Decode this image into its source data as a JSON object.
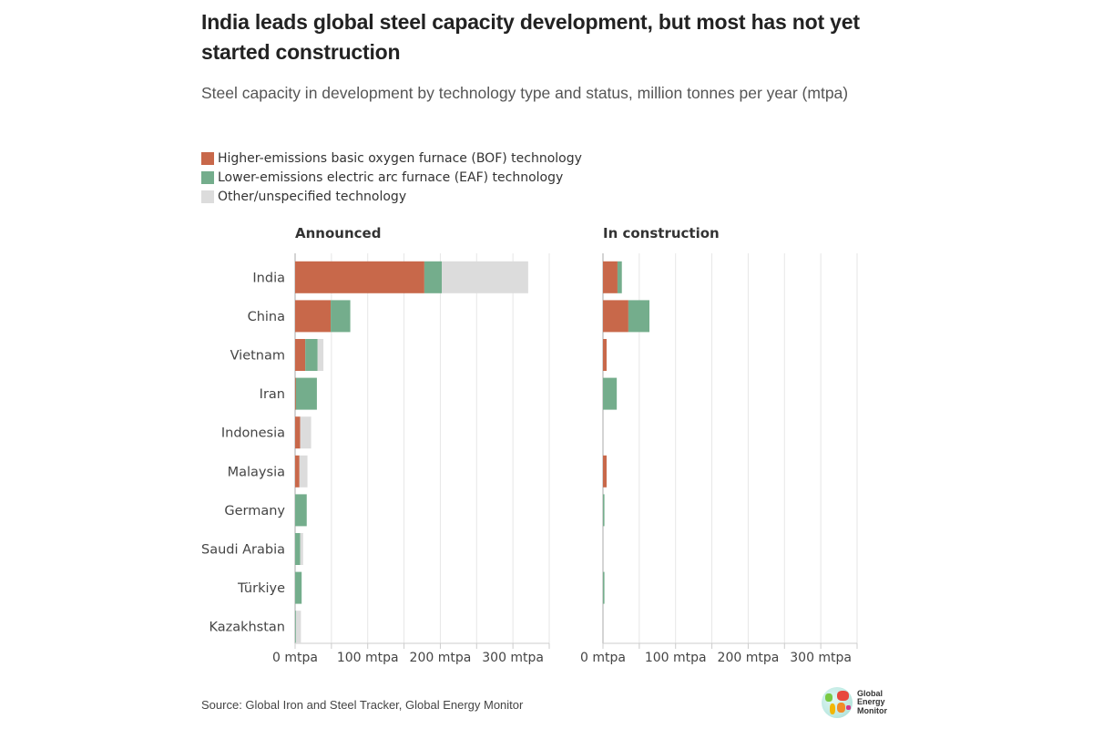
{
  "header": {
    "title": "India leads global steel capacity development, but most has not yet started construction",
    "subtitle": "Steel capacity in development by technology type and status, million tonnes per year (mtpa)"
  },
  "legend": [
    {
      "label": "Higher-emissions basic oxygen furnace (BOF) technology",
      "color": "#c8684a"
    },
    {
      "label": "Lower-emissions electric arc furnace (EAF) technology",
      "color": "#74ad8c"
    },
    {
      "label": "Other/unspecified technology",
      "color": "#dcdcdc"
    }
  ],
  "chart_data": [
    {
      "type": "bar",
      "orientation": "horizontal",
      "stacked": true,
      "title": "Announced",
      "categories": [
        "India",
        "China",
        "Vietnam",
        "Iran",
        "Indonesia",
        "Malaysia",
        "Germany",
        "Saudi Arabia",
        "Türkiye",
        "Kazakhstan"
      ],
      "series": [
        {
          "name": "Higher-emissions basic oxygen furnace (BOF) technology",
          "color": "#c8684a",
          "values": [
            178,
            49,
            14,
            1,
            7,
            6,
            0,
            0,
            0,
            0
          ]
        },
        {
          "name": "Lower-emissions electric arc furnace (EAF) technology",
          "color": "#74ad8c",
          "values": [
            24,
            27,
            17,
            29,
            0,
            0,
            16,
            7,
            9,
            1
          ]
        },
        {
          "name": "Other/unspecified technology",
          "color": "#dcdcdc",
          "values": [
            119,
            0,
            8,
            0,
            15,
            11,
            0,
            4,
            0,
            7
          ]
        }
      ],
      "xlim": [
        0,
        350
      ],
      "xticks": [
        0,
        100,
        200,
        300
      ],
      "xtick_labels": [
        "0 mtpa",
        "100 mtpa",
        "200 mtpa",
        "300 mtpa"
      ],
      "grid": true
    },
    {
      "type": "bar",
      "orientation": "horizontal",
      "stacked": true,
      "title": "In construction",
      "categories": [
        "India",
        "China",
        "Vietnam",
        "Iran",
        "Indonesia",
        "Malaysia",
        "Germany",
        "Saudi Arabia",
        "Türkiye",
        "Kazakhstan"
      ],
      "series": [
        {
          "name": "Higher-emissions basic oxygen furnace (BOF) technology",
          "color": "#c8684a",
          "values": [
            20,
            35,
            5,
            0,
            0,
            5,
            0,
            0,
            0,
            0
          ]
        },
        {
          "name": "Lower-emissions electric arc furnace (EAF) technology",
          "color": "#74ad8c",
          "values": [
            6,
            29,
            0,
            19,
            0,
            0,
            2,
            0,
            2,
            0
          ]
        },
        {
          "name": "Other/unspecified technology",
          "color": "#dcdcdc",
          "values": [
            0,
            0,
            0,
            0,
            0,
            0,
            0,
            0,
            0,
            0
          ]
        }
      ],
      "xlim": [
        0,
        350
      ],
      "xticks": [
        0,
        100,
        200,
        300
      ],
      "xtick_labels": [
        "0 mtpa",
        "100 mtpa",
        "200 mtpa",
        "300 mtpa"
      ],
      "grid": true
    }
  ],
  "footer": {
    "source": "Source: Global Iron and Steel Tracker, Global Energy Monitor",
    "logo_lines": [
      "Global",
      "Energy",
      "Monitor"
    ]
  }
}
